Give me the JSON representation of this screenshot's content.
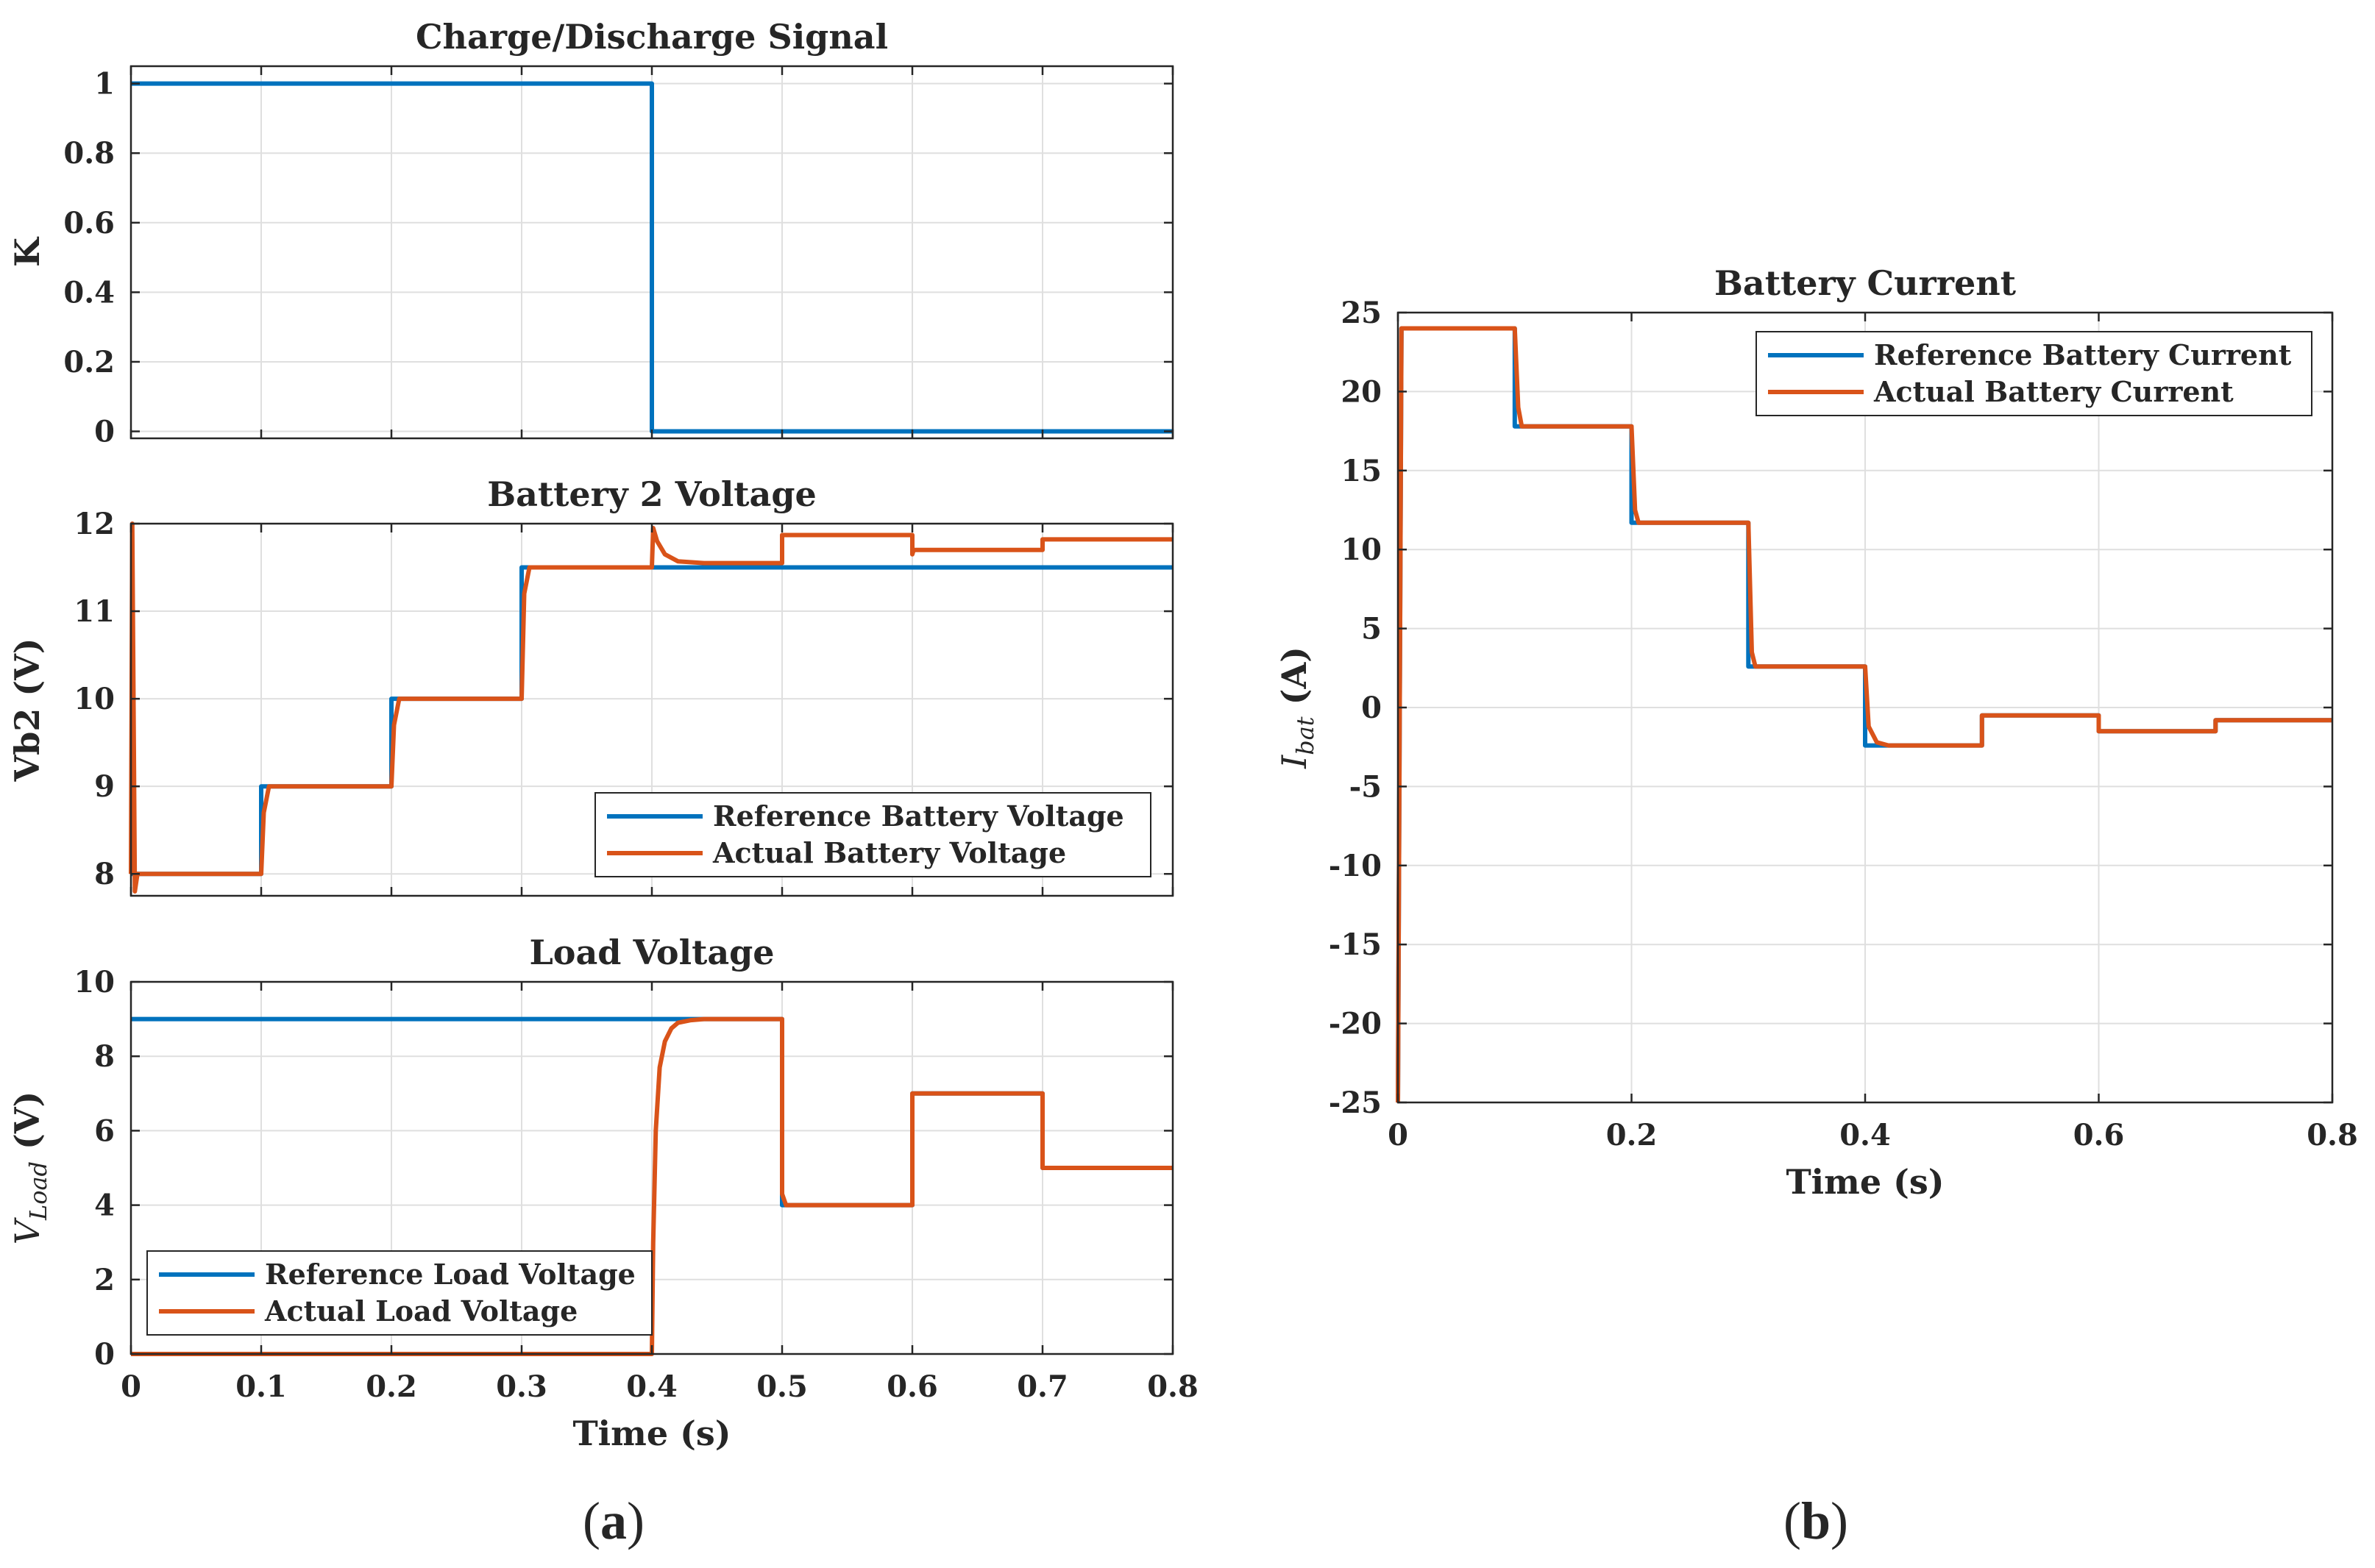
{
  "figure": {
    "panel_labels": [
      {
        "open": "(",
        "letter": "a",
        "close": ")"
      },
      {
        "open": "(",
        "letter": "b",
        "close": ")"
      }
    ],
    "colors": {
      "reference": "#0072BD",
      "actual": "#D95319",
      "axis": "#262626",
      "grid": "#dfdfdf"
    }
  },
  "chart_data": [
    {
      "id": "k",
      "type": "line",
      "title": "Charge/Discharge Signal",
      "xlabel": "",
      "ylabel": "K",
      "xlim": [
        0,
        0.8
      ],
      "ylim": [
        -0.02,
        1.05
      ],
      "xticks": [
        0,
        0.1,
        0.2,
        0.3,
        0.4,
        0.5,
        0.6,
        0.7,
        0.8
      ],
      "xtick_labels": [],
      "yticks": [
        0,
        0.2,
        0.4,
        0.6,
        0.8,
        1
      ],
      "ytick_labels": [
        "0",
        "0.2",
        "0.4",
        "0.6",
        "0.8",
        "1"
      ],
      "grid": true,
      "legend": null,
      "series": [
        {
          "name": "K",
          "role": "reference",
          "x": [
            0,
            0.4,
            0.4,
            0.8
          ],
          "y": [
            1,
            1,
            0,
            0
          ]
        }
      ]
    },
    {
      "id": "vb2",
      "type": "line",
      "title": "Battery 2 Voltage",
      "xlabel": "",
      "ylabel": "Vb2 (V)",
      "xlim": [
        0,
        0.8
      ],
      "ylim": [
        7.75,
        12
      ],
      "xticks": [
        0,
        0.1,
        0.2,
        0.3,
        0.4,
        0.5,
        0.6,
        0.7,
        0.8
      ],
      "xtick_labels": [],
      "yticks": [
        8,
        9,
        10,
        11,
        12
      ],
      "ytick_labels": [
        "8",
        "9",
        "10",
        "11",
        "12"
      ],
      "grid": true,
      "legend": {
        "position": "lower-right",
        "entries": [
          "Reference Battery Voltage",
          "Actual Battery Voltage"
        ]
      },
      "series": [
        {
          "name": "Reference Battery Voltage",
          "role": "reference",
          "x": [
            0,
            0.1,
            0.1,
            0.2,
            0.2,
            0.3,
            0.3,
            0.8
          ],
          "y": [
            8,
            8,
            9,
            9,
            10,
            10,
            11.5,
            11.5
          ]
        },
        {
          "name": "Actual Battery Voltage",
          "role": "actual",
          "x": [
            0,
            0.001,
            0.003,
            0.005,
            0.1,
            0.102,
            0.106,
            0.2,
            0.202,
            0.206,
            0.3,
            0.302,
            0.306,
            0.4,
            0.401,
            0.404,
            0.41,
            0.42,
            0.44,
            0.5,
            0.5,
            0.6,
            0.6,
            0.601,
            0.7,
            0.7,
            0.8
          ],
          "y": [
            8,
            12,
            7.8,
            8,
            8,
            8.7,
            9,
            9,
            9.7,
            10,
            10,
            11.2,
            11.5,
            11.5,
            11.95,
            11.8,
            11.65,
            11.57,
            11.55,
            11.55,
            11.87,
            11.87,
            11.65,
            11.7,
            11.7,
            11.82,
            11.82
          ]
        }
      ]
    },
    {
      "id": "vload",
      "type": "line",
      "title": "Load Voltage",
      "xlabel": "Time (s)",
      "ylabel": "V",
      "ylabel_subscript": "Load",
      "ylabel_unit": " (V)",
      "xlim": [
        0,
        0.8
      ],
      "ylim": [
        0,
        10
      ],
      "xticks": [
        0,
        0.1,
        0.2,
        0.3,
        0.4,
        0.5,
        0.6,
        0.7,
        0.8
      ],
      "xtick_labels": [
        "0",
        "0.1",
        "0.2",
        "0.3",
        "0.4",
        "0.5",
        "0.6",
        "0.7",
        "0.8"
      ],
      "yticks": [
        0,
        2,
        4,
        6,
        8,
        10
      ],
      "ytick_labels": [
        "0",
        "2",
        "4",
        "6",
        "8",
        "10"
      ],
      "grid": true,
      "legend": {
        "position": "lower-left",
        "entries": [
          "Reference Load Voltage",
          "Actual Load Voltage"
        ]
      },
      "series": [
        {
          "name": "Reference Load Voltage",
          "role": "reference",
          "x": [
            0,
            0.5,
            0.5,
            0.6,
            0.6,
            0.7,
            0.7,
            0.8
          ],
          "y": [
            9,
            9,
            4,
            4,
            7,
            7,
            5,
            5
          ]
        },
        {
          "name": "Actual Load Voltage",
          "role": "actual",
          "x": [
            0,
            0.4,
            0.401,
            0.403,
            0.406,
            0.41,
            0.415,
            0.42,
            0.43,
            0.44,
            0.5,
            0.5,
            0.503,
            0.6,
            0.6,
            0.7,
            0.7,
            0.8
          ],
          "y": [
            0,
            0,
            3,
            6,
            7.7,
            8.4,
            8.75,
            8.9,
            8.97,
            9,
            9,
            4.3,
            4,
            4,
            7,
            7,
            5,
            5
          ]
        }
      ]
    },
    {
      "id": "ibat",
      "type": "line",
      "title": "Battery Current",
      "xlabel": "Time (s)",
      "ylabel": "I",
      "ylabel_subscript": "bat",
      "ylabel_unit": " (A)",
      "xlim": [
        0,
        0.8
      ],
      "ylim": [
        -25,
        25
      ],
      "xticks": [
        0,
        0.2,
        0.4,
        0.6,
        0.8
      ],
      "xtick_labels": [
        "0",
        "0.2",
        "0.4",
        "0.6",
        "0.8"
      ],
      "yticks": [
        -25,
        -20,
        -15,
        -10,
        -5,
        0,
        5,
        10,
        15,
        20,
        25
      ],
      "ytick_labels": [
        "-25",
        "-20",
        "-15",
        "-10",
        "-5",
        "0",
        "5",
        "10",
        "15",
        "20",
        "25"
      ],
      "grid": true,
      "legend": {
        "position": "top-right",
        "entries": [
          "Reference Battery Current",
          "Actual Battery Current"
        ]
      },
      "series": [
        {
          "name": "Reference Battery Current",
          "role": "reference",
          "x": [
            0,
            0.003,
            0.1,
            0.1,
            0.2,
            0.2,
            0.3,
            0.3,
            0.4,
            0.4,
            0.5,
            0.5,
            0.6,
            0.6,
            0.7,
            0.7,
            0.8
          ],
          "y": [
            -25,
            24,
            24,
            17.8,
            17.8,
            11.7,
            11.7,
            2.6,
            2.6,
            -2.4,
            -2.4,
            -0.5,
            -0.5,
            -1.5,
            -1.5,
            -0.8,
            -0.8
          ]
        },
        {
          "name": "Actual Battery Current",
          "role": "actual",
          "x": [
            0,
            0.003,
            0.1,
            0.103,
            0.106,
            0.2,
            0.203,
            0.206,
            0.3,
            0.303,
            0.306,
            0.4,
            0.403,
            0.41,
            0.42,
            0.5,
            0.5,
            0.6,
            0.6,
            0.7,
            0.7,
            0.8
          ],
          "y": [
            -25,
            24,
            24,
            19,
            17.8,
            17.8,
            12.5,
            11.7,
            11.7,
            3.5,
            2.6,
            2.6,
            -1.2,
            -2.2,
            -2.4,
            -2.4,
            -0.5,
            -0.5,
            -1.5,
            -1.5,
            -0.8,
            -0.8
          ]
        }
      ]
    }
  ]
}
